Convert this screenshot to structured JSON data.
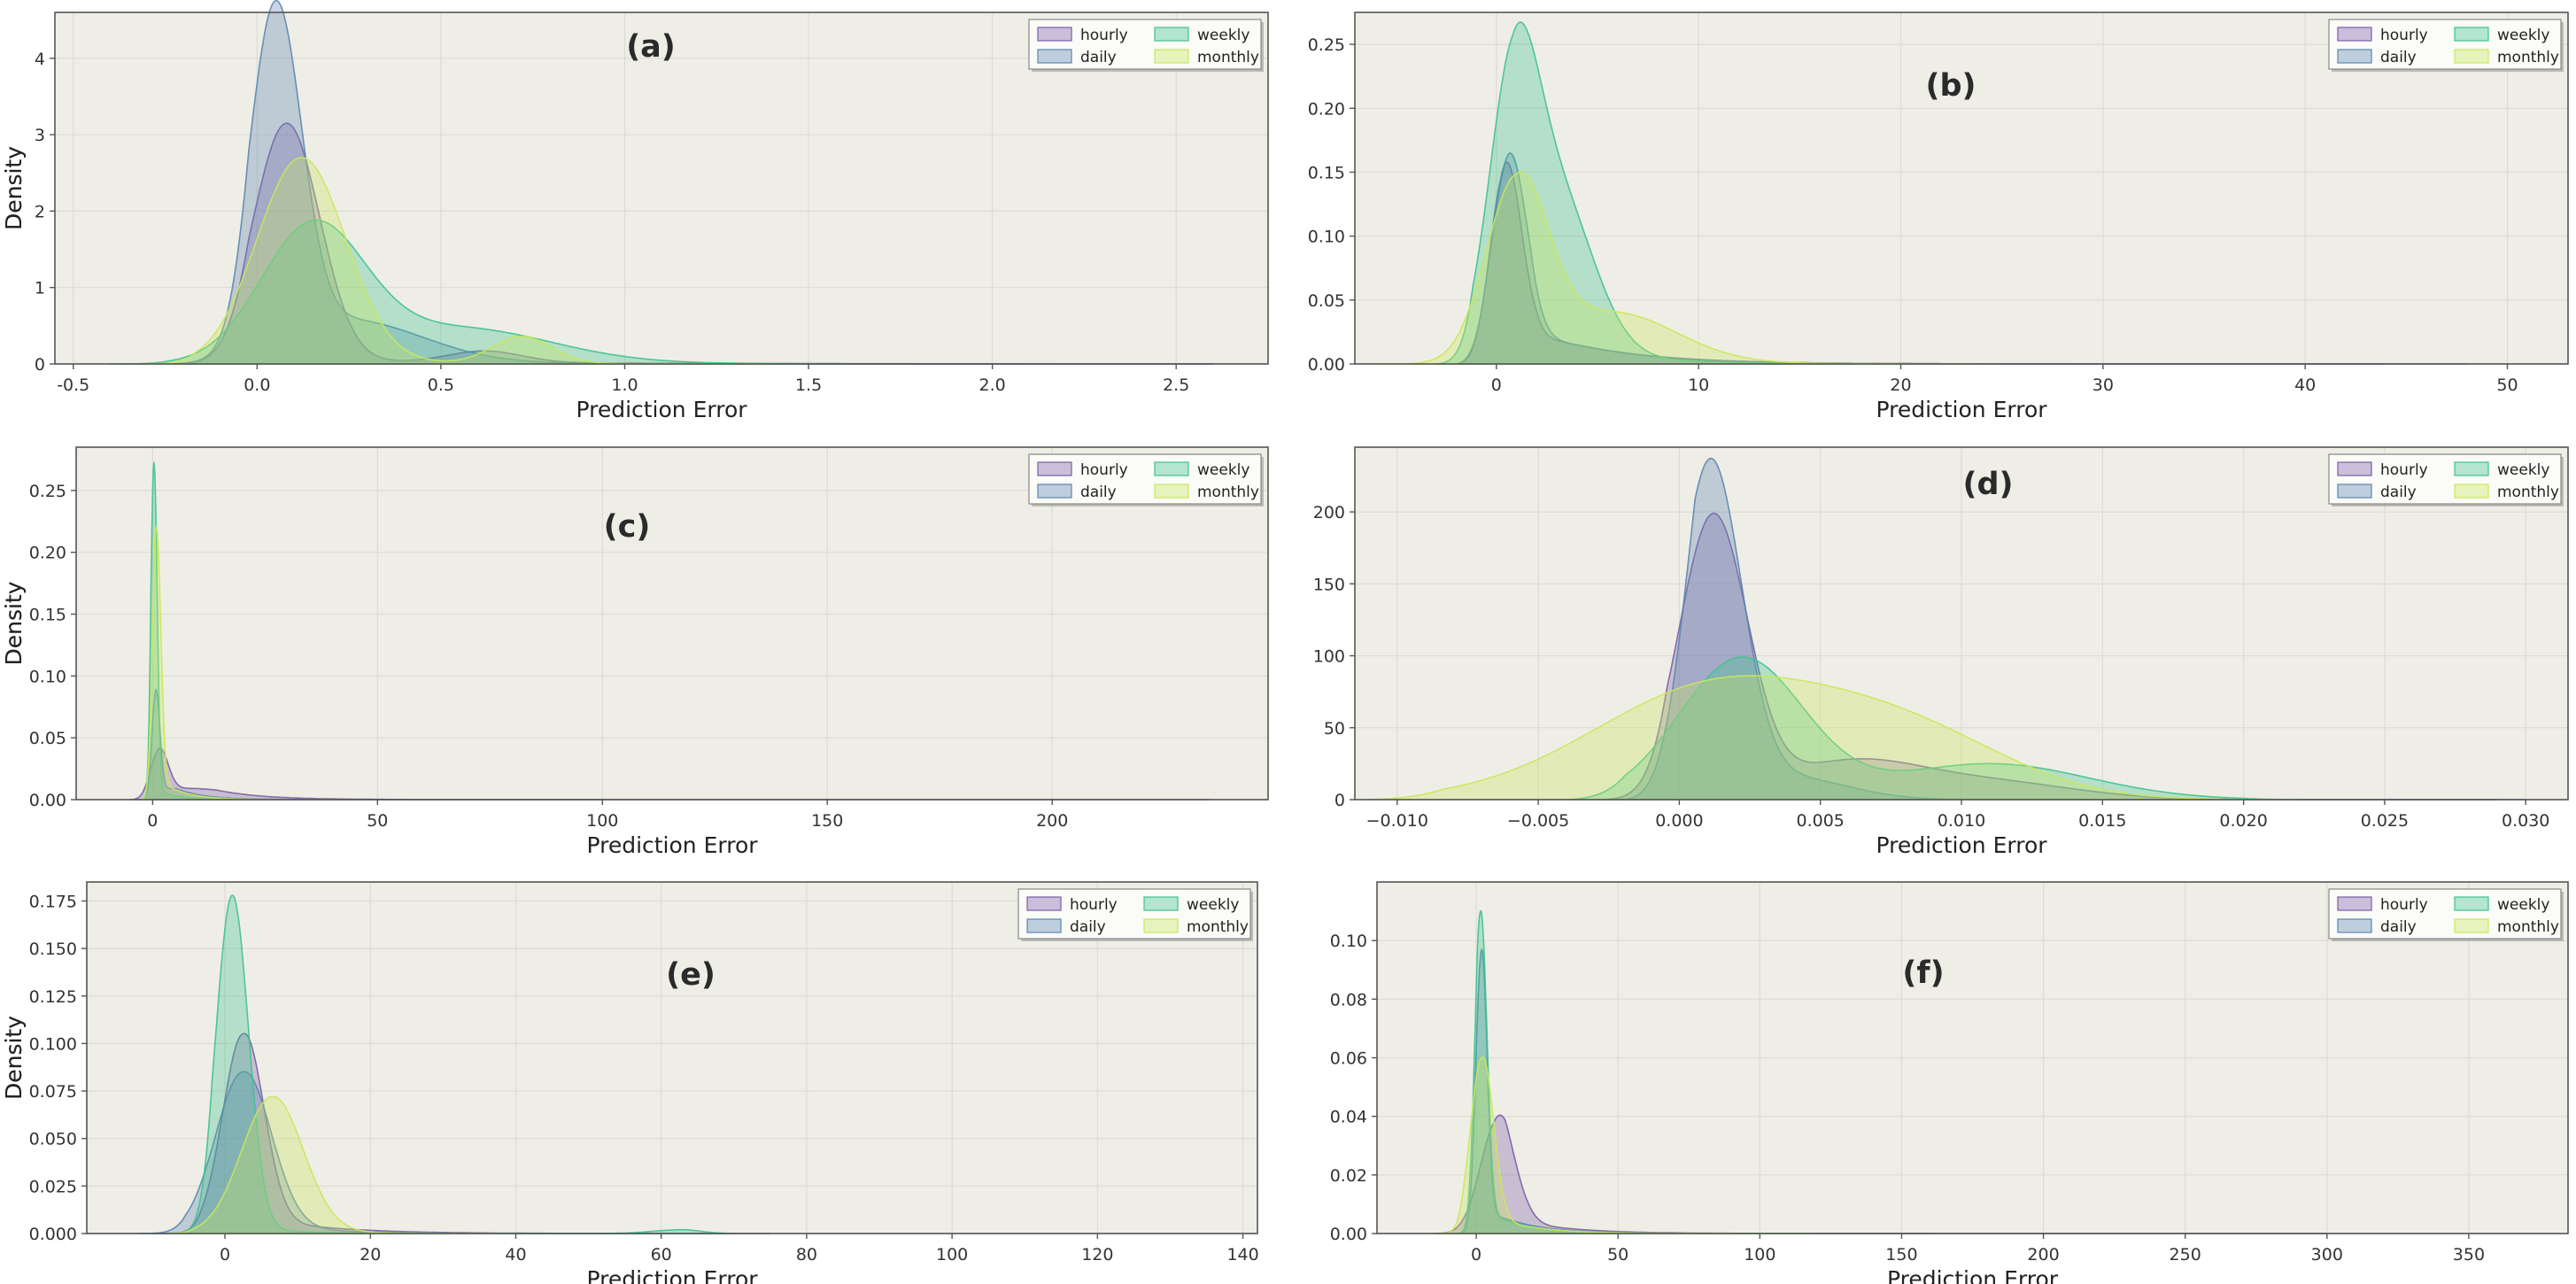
{
  "legend_labels": [
    "hourly",
    "daily",
    "weekly",
    "monthly"
  ],
  "series_colors": {
    "hourly": "#7b5ea7",
    "daily": "#5b86b0",
    "weekly": "#3ec28f",
    "monthly": "#c9e85a"
  },
  "chart_data": [
    {
      "type": "area",
      "title": "(a)",
      "xlabel": "Prediction Error",
      "ylabel": "Density",
      "xlim": [
        -0.55,
        2.75
      ],
      "ylim": [
        0,
        4.6
      ],
      "xticks": [
        -0.5,
        0.0,
        0.5,
        1.0,
        1.5,
        2.0,
        2.5
      ],
      "xtick_labels": [
        "-0.5",
        "0.0",
        "0.5",
        "1.0",
        "1.5",
        "2.0",
        "2.5"
      ],
      "yticks": [
        0,
        1,
        2,
        3,
        4
      ],
      "ytick_labels": [
        "0",
        "1",
        "2",
        "3",
        "4"
      ],
      "series": [
        {
          "name": "hourly",
          "peaks": [
            [
              0.08,
              3.15,
              0.09
            ],
            [
              0.62,
              0.15,
              0.1
            ]
          ],
          "tail": [
            0.05,
            0.6
          ],
          "range": [
            -0.25,
            2.6
          ]
        },
        {
          "name": "daily",
          "peaks": [
            [
              0.05,
              4.42,
              0.07
            ],
            [
              0.25,
              0.55,
              0.2
            ]
          ],
          "tail": [
            0.04,
            0.5
          ],
          "range": [
            -0.25,
            2.6
          ]
        },
        {
          "name": "weekly",
          "peaks": [
            [
              0.15,
              1.75,
              0.14
            ],
            [
              0.55,
              0.45,
              0.25
            ]
          ],
          "tail": [
            0.05,
            0.5
          ],
          "range": [
            -0.4,
            1.6
          ]
        },
        {
          "name": "monthly",
          "peaks": [
            [
              0.12,
              2.7,
              0.12
            ],
            [
              0.72,
              0.35,
              0.08
            ]
          ],
          "tail": [
            0.05,
            0.4
          ],
          "range": [
            -0.3,
            1.4
          ]
        }
      ]
    },
    {
      "type": "area",
      "title": "(b)",
      "xlabel": "Prediction Error",
      "ylabel": "Density",
      "xlim": [
        -7,
        53
      ],
      "ylim": [
        0,
        0.275
      ],
      "xticks": [
        0,
        10,
        20,
        30,
        40,
        50
      ],
      "xtick_labels": [
        "0",
        "10",
        "20",
        "30",
        "40",
        "50"
      ],
      "yticks": [
        0,
        0.05,
        0.1,
        0.15,
        0.2,
        0.25
      ],
      "ytick_labels": [
        "0.00",
        "0.05",
        "0.10",
        "0.15",
        "0.20",
        "0.25"
      ],
      "series": [
        {
          "name": "hourly",
          "peaks": [
            [
              0.2,
              0.262,
              0.8
            ]
          ],
          "tail": [
            0.04,
            4.0
          ],
          "range": [
            -2,
            48
          ]
        },
        {
          "name": "daily",
          "peaks": [
            [
              0.3,
              0.238,
              0.9
            ]
          ],
          "tail": [
            0.04,
            4.0
          ],
          "range": [
            -2,
            44
          ]
        },
        {
          "name": "weekly",
          "peaks": [
            [
              0.8,
              0.2,
              1.2
            ],
            [
              3.0,
              0.12,
              1.8
            ]
          ],
          "tail": [
            0.03,
            3.5
          ],
          "range": [
            -3,
            20
          ]
        },
        {
          "name": "monthly",
          "peaks": [
            [
              1.0,
              0.14,
              1.5
            ],
            [
              6.0,
              0.035,
              3.0
            ]
          ],
          "tail": [
            0.02,
            4.0
          ],
          "range": [
            -6,
            25
          ]
        }
      ]
    },
    {
      "type": "area",
      "title": "(c)",
      "xlabel": "Prediction Error",
      "ylabel": "Density",
      "xlim": [
        -17,
        248
      ],
      "ylim": [
        0,
        0.285
      ],
      "xticks": [
        0,
        50,
        100,
        150,
        200
      ],
      "xtick_labels": [
        "0",
        "50",
        "100",
        "150",
        "200"
      ],
      "yticks": [
        0,
        0.05,
        0.1,
        0.15,
        0.2,
        0.25
      ],
      "ytick_labels": [
        "0.00",
        "0.05",
        "0.10",
        "0.15",
        "0.20",
        "0.25"
      ],
      "series": [
        {
          "name": "hourly",
          "peaks": [
            [
              0.8,
              0.125,
              2.0
            ]
          ],
          "tail": [
            0.03,
            10.0
          ],
          "range": [
            -5,
            235
          ]
        },
        {
          "name": "daily",
          "peaks": [
            [
              0.5,
              0.2,
              0.9
            ]
          ],
          "tail": [
            0.02,
            6.0
          ],
          "range": [
            -3,
            100
          ]
        },
        {
          "name": "weekly",
          "peaks": [
            [
              0.3,
              0.272,
              0.7
            ]
          ],
          "tail": [
            0.01,
            4.0
          ],
          "range": [
            -3,
            30
          ]
        },
        {
          "name": "monthly",
          "peaks": [
            [
              0.8,
              0.22,
              1.0
            ]
          ],
          "tail": [
            0.02,
            5.0
          ],
          "range": [
            -3,
            40
          ]
        }
      ]
    },
    {
      "type": "area",
      "title": "(d)",
      "xlabel": "Prediction Error",
      "ylabel": "Density",
      "xlim": [
        -0.0115,
        0.0315
      ],
      "ylim": [
        0,
        245
      ],
      "xticks": [
        -0.01,
        -0.005,
        0.0,
        0.005,
        0.01,
        0.015,
        0.02,
        0.025,
        0.03
      ],
      "xtick_labels": [
        "−0.010",
        "−0.005",
        "0.000",
        "0.005",
        "0.010",
        "0.015",
        "0.020",
        "0.025",
        "0.030"
      ],
      "yticks": [
        0,
        50,
        100,
        150,
        200
      ],
      "ytick_labels": [
        "0",
        "50",
        "100",
        "150",
        "200"
      ],
      "series": [
        {
          "name": "hourly",
          "peaks": [
            [
              0.0012,
              195,
              0.0012
            ],
            [
              0.006,
              25,
              0.0025
            ],
            [
              0.011,
              12,
              0.003
            ]
          ],
          "tail": [
            0,
            1
          ],
          "range": [
            -0.003,
            0.029
          ]
        },
        {
          "name": "daily",
          "peaks": [
            [
              0.0011,
              232,
              0.0011
            ],
            [
              0.004,
              15,
              0.002
            ]
          ],
          "tail": [
            0,
            1
          ],
          "range": [
            -0.002,
            0.03
          ]
        },
        {
          "name": "weekly",
          "peaks": [
            [
              0.0022,
              98,
              0.0022
            ],
            [
              0.011,
              25,
              0.0035
            ]
          ],
          "tail": [
            0,
            1
          ],
          "range": [
            -0.004,
            0.022
          ]
        },
        {
          "name": "monthly",
          "peaks": [
            [
              0.0015,
              80,
              0.0045
            ],
            [
              0.0085,
              35,
              0.0035
            ]
          ],
          "tail": [
            0,
            1
          ],
          "range": [
            -0.011,
            0.022
          ]
        }
      ]
    },
    {
      "type": "area",
      "title": "(e)",
      "xlabel": "Prediction Error",
      "ylabel": "Density",
      "xlim": [
        -19,
        142
      ],
      "ylim": [
        0,
        0.185
      ],
      "xticks": [
        0,
        20,
        40,
        60,
        80,
        100,
        120,
        140
      ],
      "xtick_labels": [
        "0",
        "20",
        "40",
        "60",
        "80",
        "100",
        "120",
        "140"
      ],
      "yticks": [
        0,
        0.025,
        0.05,
        0.075,
        0.1,
        0.125,
        0.15,
        0.175
      ],
      "ytick_labels": [
        "0.000",
        "0.025",
        "0.050",
        "0.075",
        "0.100",
        "0.125",
        "0.150",
        "0.175"
      ],
      "series": [
        {
          "name": "hourly",
          "peaks": [
            [
              2.5,
              0.105,
              2.8
            ]
          ],
          "tail": [
            0.012,
            9.0
          ],
          "range": [
            -10,
            75
          ]
        },
        {
          "name": "daily",
          "peaks": [
            [
              2.5,
              0.085,
              3.8
            ]
          ],
          "tail": [
            0.008,
            8.0
          ],
          "range": [
            -12,
            70
          ]
        },
        {
          "name": "weekly",
          "peaks": [
            [
              1.0,
              0.178,
              2.2
            ],
            [
              63,
              0.002,
              4
            ]
          ],
          "tail": [
            0.005,
            6.0
          ],
          "range": [
            -8,
            70
          ]
        },
        {
          "name": "monthly",
          "peaks": [
            [
              6.5,
              0.072,
              4.2
            ]
          ],
          "tail": [
            0.005,
            6.0
          ],
          "range": [
            -8,
            40
          ]
        }
      ]
    },
    {
      "type": "area",
      "title": "(f)",
      "xlabel": "Prediction Error",
      "ylabel": "Density",
      "xlim": [
        -35,
        385
      ],
      "ylim": [
        0,
        0.12
      ],
      "xticks": [
        0,
        50,
        100,
        150,
        200,
        250,
        300,
        350
      ],
      "xtick_labels": [
        "0",
        "50",
        "100",
        "150",
        "200",
        "250",
        "300",
        "350"
      ],
      "yticks": [
        0,
        0.02,
        0.04,
        0.06,
        0.08,
        0.1
      ],
      "ytick_labels": [
        "0.00",
        "0.02",
        "0.04",
        "0.06",
        "0.08",
        "0.10"
      ],
      "series": [
        {
          "name": "hourly",
          "peaks": [
            [
              6.0,
              0.045,
              6.5
            ]
          ],
          "tail": [
            0.008,
            18.0
          ],
          "range": [
            -15,
            300
          ]
        },
        {
          "name": "daily",
          "peaks": [
            [
              1.5,
              0.112,
              2.0
            ]
          ],
          "tail": [
            0.01,
            14.0
          ],
          "range": [
            -10,
            160
          ]
        },
        {
          "name": "weekly",
          "peaks": [
            [
              1.5,
              0.11,
              2.2
            ]
          ],
          "tail": [
            0.01,
            12.0
          ],
          "range": [
            -10,
            120
          ]
        },
        {
          "name": "monthly",
          "peaks": [
            [
              2.0,
              0.06,
              4.0
            ]
          ],
          "tail": [
            0.008,
            14.0
          ],
          "range": [
            -15,
            120
          ]
        }
      ]
    }
  ]
}
